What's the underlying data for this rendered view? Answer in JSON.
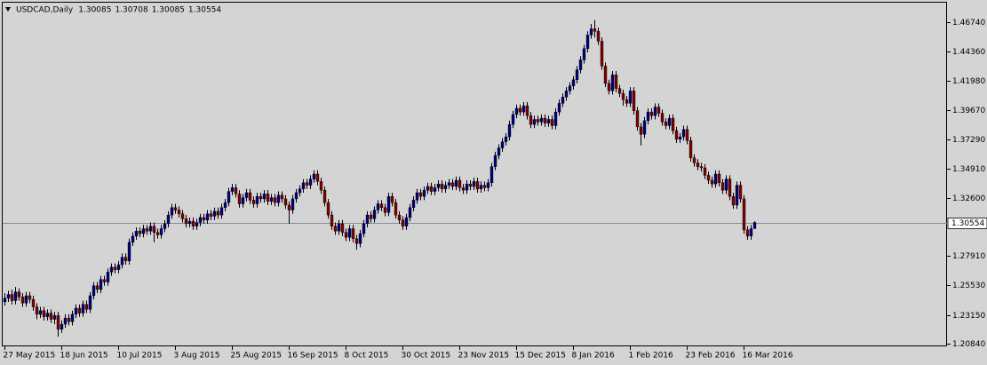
{
  "chart_data": {
    "type": "candlestick",
    "title": "USDCAD,Daily",
    "quote": [
      "1.30085",
      "1.30708",
      "1.30085",
      "1.30554"
    ],
    "current_price": {
      "value": 1.30554,
      "label": "1.30554"
    },
    "up_color": "#000080",
    "down_color": "#800000",
    "ylim": [
      1.2069,
      1.4838
    ],
    "yticks": [
      {
        "value": 1.4674,
        "label": "1.46740"
      },
      {
        "value": 1.4436,
        "label": "1.44360"
      },
      {
        "value": 1.4198,
        "label": "1.41980"
      },
      {
        "value": 1.3967,
        "label": "1.39670"
      },
      {
        "value": 1.3729,
        "label": "1.37290"
      },
      {
        "value": 1.3491,
        "label": "1.34910"
      },
      {
        "value": 1.326,
        "label": "1.32600"
      },
      {
        "value": 1.2791,
        "label": "1.27910"
      },
      {
        "value": 1.2553,
        "label": "1.25530"
      },
      {
        "value": 1.2315,
        "label": "1.23150"
      },
      {
        "value": 1.2084,
        "label": "1.20840"
      }
    ],
    "categories": [
      "27 May 2015",
      null,
      null,
      null,
      null,
      null,
      null,
      null,
      null,
      null,
      null,
      null,
      null,
      null,
      null,
      null,
      "18 Jun 2015",
      null,
      null,
      null,
      null,
      null,
      null,
      null,
      null,
      null,
      null,
      null,
      null,
      null,
      null,
      null,
      "10 Jul 2015",
      null,
      null,
      null,
      null,
      null,
      null,
      null,
      null,
      null,
      null,
      null,
      null,
      null,
      null,
      null,
      "3 Aug 2015",
      null,
      null,
      null,
      null,
      null,
      null,
      null,
      null,
      null,
      null,
      null,
      null,
      null,
      null,
      null,
      "25 Aug 2015",
      null,
      null,
      null,
      null,
      null,
      null,
      null,
      null,
      null,
      null,
      null,
      null,
      null,
      null,
      null,
      "16 Sep 2015",
      null,
      null,
      null,
      null,
      null,
      null,
      null,
      null,
      null,
      null,
      null,
      null,
      null,
      null,
      null,
      "8 Oct 2015",
      null,
      null,
      null,
      null,
      null,
      null,
      null,
      null,
      null,
      null,
      null,
      null,
      null,
      null,
      null,
      "30 Oct 2015",
      null,
      null,
      null,
      null,
      null,
      null,
      null,
      null,
      null,
      null,
      null,
      null,
      null,
      null,
      null,
      "23 Nov 2015",
      null,
      null,
      null,
      null,
      null,
      null,
      null,
      null,
      null,
      null,
      null,
      null,
      null,
      null,
      null,
      "15 Dec 2015",
      null,
      null,
      null,
      null,
      null,
      null,
      null,
      null,
      null,
      null,
      null,
      null,
      null,
      null,
      null,
      "8 Jan 2016",
      null,
      null,
      null,
      null,
      null,
      null,
      null,
      null,
      null,
      null,
      null,
      null,
      null,
      null,
      null,
      "1 Feb 2016",
      null,
      null,
      null,
      null,
      null,
      null,
      null,
      null,
      null,
      null,
      null,
      null,
      null,
      null,
      null,
      "23 Feb 2016",
      null,
      null,
      null,
      null,
      null,
      null,
      null,
      null,
      null,
      null,
      null,
      null,
      null,
      null,
      null,
      "16 Mar 2016",
      null,
      null,
      null
    ],
    "open": [
      1.242,
      1.245,
      1.248,
      1.243,
      1.25,
      1.246,
      1.241,
      1.247,
      1.244,
      1.238,
      1.232,
      1.235,
      1.23,
      1.233,
      1.228,
      1.231,
      1.22,
      1.224,
      1.229,
      1.226,
      1.232,
      1.237,
      1.233,
      1.24,
      1.236,
      1.247,
      1.255,
      1.252,
      1.26,
      1.258,
      1.266,
      1.27,
      1.268,
      1.272,
      1.278,
      1.275,
      1.29,
      1.295,
      1.299,
      1.297,
      1.301,
      1.299,
      1.303,
      1.298,
      1.296,
      1.301,
      1.305,
      1.312,
      1.318,
      1.316,
      1.313,
      1.309,
      1.305,
      1.307,
      1.303,
      1.306,
      1.31,
      1.308,
      1.313,
      1.311,
      1.315,
      1.312,
      1.318,
      1.322,
      1.331,
      1.334,
      1.329,
      1.321,
      1.326,
      1.33,
      1.324,
      1.321,
      1.327,
      1.325,
      1.329,
      1.323,
      1.326,
      1.322,
      1.328,
      1.325,
      1.32,
      1.316,
      1.325,
      1.33,
      1.333,
      1.338,
      1.336,
      1.341,
      1.345,
      1.339,
      1.332,
      1.322,
      1.312,
      1.303,
      1.299,
      1.305,
      1.298,
      1.294,
      1.301,
      1.293,
      1.289,
      1.297,
      1.305,
      1.312,
      1.309,
      1.316,
      1.321,
      1.318,
      1.314,
      1.327,
      1.322,
      1.312,
      1.308,
      1.303,
      1.31,
      1.318,
      1.324,
      1.33,
      1.327,
      1.332,
      1.335,
      1.331,
      1.334,
      1.337,
      1.333,
      1.336,
      1.338,
      1.335,
      1.34,
      1.334,
      1.332,
      1.337,
      1.335,
      1.339,
      1.333,
      1.336,
      1.334,
      1.338,
      1.351,
      1.36,
      1.366,
      1.371,
      1.375,
      1.385,
      1.393,
      1.398,
      1.395,
      1.4,
      1.392,
      1.385,
      1.389,
      1.387,
      1.39,
      1.386,
      1.389,
      1.384,
      1.395,
      1.402,
      1.407,
      1.412,
      1.416,
      1.421,
      1.429,
      1.437,
      1.446,
      1.457,
      1.462,
      1.46,
      1.452,
      1.432,
      1.418,
      1.412,
      1.425,
      1.414,
      1.41,
      1.405,
      1.402,
      1.412,
      1.396,
      1.383,
      1.377,
      1.388,
      1.395,
      1.392,
      1.399,
      1.394,
      1.387,
      1.384,
      1.39,
      1.38,
      1.373,
      1.375,
      1.381,
      1.372,
      1.358,
      1.354,
      1.351,
      1.35,
      1.344,
      1.34,
      1.337,
      1.345,
      1.338,
      1.332,
      1.341,
      1.327,
      1.32,
      1.336,
      1.325,
      1.3,
      1.295,
      1.301
    ],
    "high": [
      1.249,
      1.251,
      1.252,
      1.254,
      1.253,
      1.249,
      1.25,
      1.25,
      1.247,
      1.241,
      1.238,
      1.238,
      1.236,
      1.236,
      1.234,
      1.234,
      1.227,
      1.232,
      1.232,
      1.235,
      1.24,
      1.24,
      1.243,
      1.243,
      1.25,
      1.258,
      1.258,
      1.263,
      1.263,
      1.269,
      1.273,
      1.273,
      1.275,
      1.281,
      1.281,
      1.293,
      1.298,
      1.302,
      1.302,
      1.304,
      1.304,
      1.306,
      1.306,
      1.301,
      1.304,
      1.308,
      1.315,
      1.321,
      1.321,
      1.319,
      1.316,
      1.312,
      1.31,
      1.31,
      1.309,
      1.313,
      1.313,
      1.316,
      1.316,
      1.318,
      1.318,
      1.321,
      1.325,
      1.334,
      1.337,
      1.337,
      1.332,
      1.329,
      1.333,
      1.333,
      1.327,
      1.33,
      1.33,
      1.332,
      1.332,
      1.329,
      1.329,
      1.331,
      1.331,
      1.328,
      1.323,
      1.328,
      1.333,
      1.336,
      1.341,
      1.341,
      1.344,
      1.348,
      1.348,
      1.342,
      1.335,
      1.325,
      1.315,
      1.306,
      1.308,
      1.308,
      1.301,
      1.304,
      1.304,
      1.296,
      1.3,
      1.308,
      1.315,
      1.315,
      1.319,
      1.324,
      1.324,
      1.321,
      1.33,
      1.33,
      1.325,
      1.315,
      1.311,
      1.313,
      1.321,
      1.327,
      1.333,
      1.333,
      1.335,
      1.338,
      1.338,
      1.337,
      1.34,
      1.34,
      1.339,
      1.341,
      1.341,
      1.343,
      1.343,
      1.337,
      1.34,
      1.34,
      1.342,
      1.342,
      1.339,
      1.339,
      1.341,
      1.354,
      1.363,
      1.369,
      1.374,
      1.378,
      1.388,
      1.396,
      1.401,
      1.401,
      1.403,
      1.403,
      1.395,
      1.392,
      1.392,
      1.393,
      1.393,
      1.392,
      1.392,
      1.398,
      1.405,
      1.41,
      1.415,
      1.419,
      1.424,
      1.432,
      1.44,
      1.449,
      1.46,
      1.466,
      1.469,
      1.463,
      1.455,
      1.435,
      1.421,
      1.428,
      1.428,
      1.417,
      1.413,
      1.408,
      1.415,
      1.415,
      1.399,
      1.386,
      1.391,
      1.398,
      1.398,
      1.402,
      1.402,
      1.397,
      1.39,
      1.393,
      1.393,
      1.383,
      1.378,
      1.384,
      1.384,
      1.375,
      1.361,
      1.357,
      1.354,
      1.353,
      1.347,
      1.343,
      1.348,
      1.348,
      1.341,
      1.344,
      1.344,
      1.33,
      1.339,
      1.339,
      1.328,
      1.303,
      1.304,
      1.307
    ],
    "low": [
      1.239,
      1.242,
      1.24,
      1.24,
      1.243,
      1.238,
      1.238,
      1.241,
      1.235,
      1.228,
      1.229,
      1.227,
      1.227,
      1.225,
      1.224,
      1.214,
      1.217,
      1.221,
      1.223,
      1.223,
      1.229,
      1.23,
      1.23,
      1.233,
      1.233,
      1.244,
      1.249,
      1.249,
      1.255,
      1.255,
      1.263,
      1.265,
      1.265,
      1.269,
      1.272,
      1.272,
      1.287,
      1.292,
      1.294,
      1.294,
      1.296,
      1.296,
      1.29,
      1.293,
      1.293,
      1.298,
      1.302,
      1.309,
      1.313,
      1.31,
      1.306,
      1.302,
      1.302,
      1.3,
      1.3,
      1.303,
      1.305,
      1.305,
      1.308,
      1.308,
      1.309,
      1.309,
      1.315,
      1.319,
      1.328,
      1.326,
      1.318,
      1.318,
      1.323,
      1.321,
      1.318,
      1.318,
      1.322,
      1.322,
      1.32,
      1.32,
      1.319,
      1.319,
      1.322,
      1.317,
      1.305,
      1.313,
      1.322,
      1.327,
      1.33,
      1.333,
      1.333,
      1.338,
      1.336,
      1.329,
      1.319,
      1.309,
      1.3,
      1.296,
      1.296,
      1.295,
      1.291,
      1.291,
      1.29,
      1.284,
      1.286,
      1.294,
      1.302,
      1.306,
      1.306,
      1.313,
      1.315,
      1.311,
      1.311,
      1.319,
      1.309,
      1.305,
      1.3,
      1.3,
      1.307,
      1.315,
      1.321,
      1.324,
      1.324,
      1.329,
      1.328,
      1.328,
      1.331,
      1.33,
      1.33,
      1.333,
      1.332,
      1.332,
      1.331,
      1.329,
      1.329,
      1.332,
      1.332,
      1.33,
      1.33,
      1.331,
      1.331,
      1.335,
      1.348,
      1.357,
      1.363,
      1.368,
      1.372,
      1.382,
      1.39,
      1.392,
      1.392,
      1.389,
      1.382,
      1.382,
      1.384,
      1.384,
      1.383,
      1.383,
      1.381,
      1.381,
      1.392,
      1.399,
      1.404,
      1.409,
      1.413,
      1.418,
      1.426,
      1.434,
      1.443,
      1.454,
      1.455,
      1.449,
      1.429,
      1.415,
      1.409,
      1.409,
      1.411,
      1.407,
      1.4,
      1.399,
      1.399,
      1.393,
      1.38,
      1.368,
      1.374,
      1.385,
      1.389,
      1.389,
      1.391,
      1.384,
      1.381,
      1.381,
      1.377,
      1.37,
      1.37,
      1.372,
      1.369,
      1.355,
      1.351,
      1.348,
      1.347,
      1.341,
      1.337,
      1.334,
      1.334,
      1.335,
      1.329,
      1.329,
      1.324,
      1.317,
      1.317,
      1.322,
      1.297,
      1.292,
      1.292,
      1.301
    ],
    "close": [
      1.245,
      1.248,
      1.243,
      1.25,
      1.246,
      1.241,
      1.247,
      1.244,
      1.238,
      1.232,
      1.235,
      1.23,
      1.233,
      1.228,
      1.231,
      1.22,
      1.224,
      1.229,
      1.226,
      1.232,
      1.237,
      1.233,
      1.24,
      1.236,
      1.247,
      1.255,
      1.252,
      1.26,
      1.258,
      1.266,
      1.27,
      1.268,
      1.272,
      1.278,
      1.275,
      1.29,
      1.295,
      1.299,
      1.297,
      1.301,
      1.299,
      1.303,
      1.298,
      1.296,
      1.301,
      1.305,
      1.312,
      1.318,
      1.316,
      1.313,
      1.309,
      1.305,
      1.307,
      1.303,
      1.306,
      1.31,
      1.308,
      1.313,
      1.311,
      1.315,
      1.312,
      1.318,
      1.322,
      1.331,
      1.334,
      1.329,
      1.321,
      1.326,
      1.33,
      1.324,
      1.321,
      1.327,
      1.325,
      1.329,
      1.323,
      1.326,
      1.322,
      1.328,
      1.325,
      1.32,
      1.316,
      1.325,
      1.33,
      1.333,
      1.338,
      1.336,
      1.341,
      1.345,
      1.339,
      1.332,
      1.322,
      1.312,
      1.303,
      1.299,
      1.305,
      1.298,
      1.294,
      1.301,
      1.293,
      1.289,
      1.297,
      1.305,
      1.312,
      1.309,
      1.316,
      1.321,
      1.318,
      1.314,
      1.327,
      1.322,
      1.312,
      1.308,
      1.303,
      1.31,
      1.318,
      1.324,
      1.33,
      1.327,
      1.332,
      1.335,
      1.331,
      1.334,
      1.337,
      1.333,
      1.336,
      1.338,
      1.335,
      1.34,
      1.334,
      1.332,
      1.337,
      1.335,
      1.339,
      1.333,
      1.336,
      1.334,
      1.338,
      1.351,
      1.36,
      1.366,
      1.371,
      1.375,
      1.385,
      1.393,
      1.398,
      1.395,
      1.4,
      1.392,
      1.385,
      1.389,
      1.387,
      1.39,
      1.386,
      1.389,
      1.384,
      1.395,
      1.402,
      1.407,
      1.412,
      1.416,
      1.421,
      1.429,
      1.437,
      1.446,
      1.457,
      1.462,
      1.46,
      1.452,
      1.432,
      1.418,
      1.412,
      1.425,
      1.414,
      1.41,
      1.405,
      1.402,
      1.412,
      1.396,
      1.383,
      1.377,
      1.388,
      1.395,
      1.392,
      1.399,
      1.394,
      1.387,
      1.384,
      1.39,
      1.38,
      1.373,
      1.375,
      1.381,
      1.372,
      1.358,
      1.354,
      1.351,
      1.35,
      1.344,
      1.34,
      1.337,
      1.345,
      1.338,
      1.332,
      1.341,
      1.327,
      1.32,
      1.336,
      1.325,
      1.3,
      1.295,
      1.301,
      1.306
    ]
  }
}
